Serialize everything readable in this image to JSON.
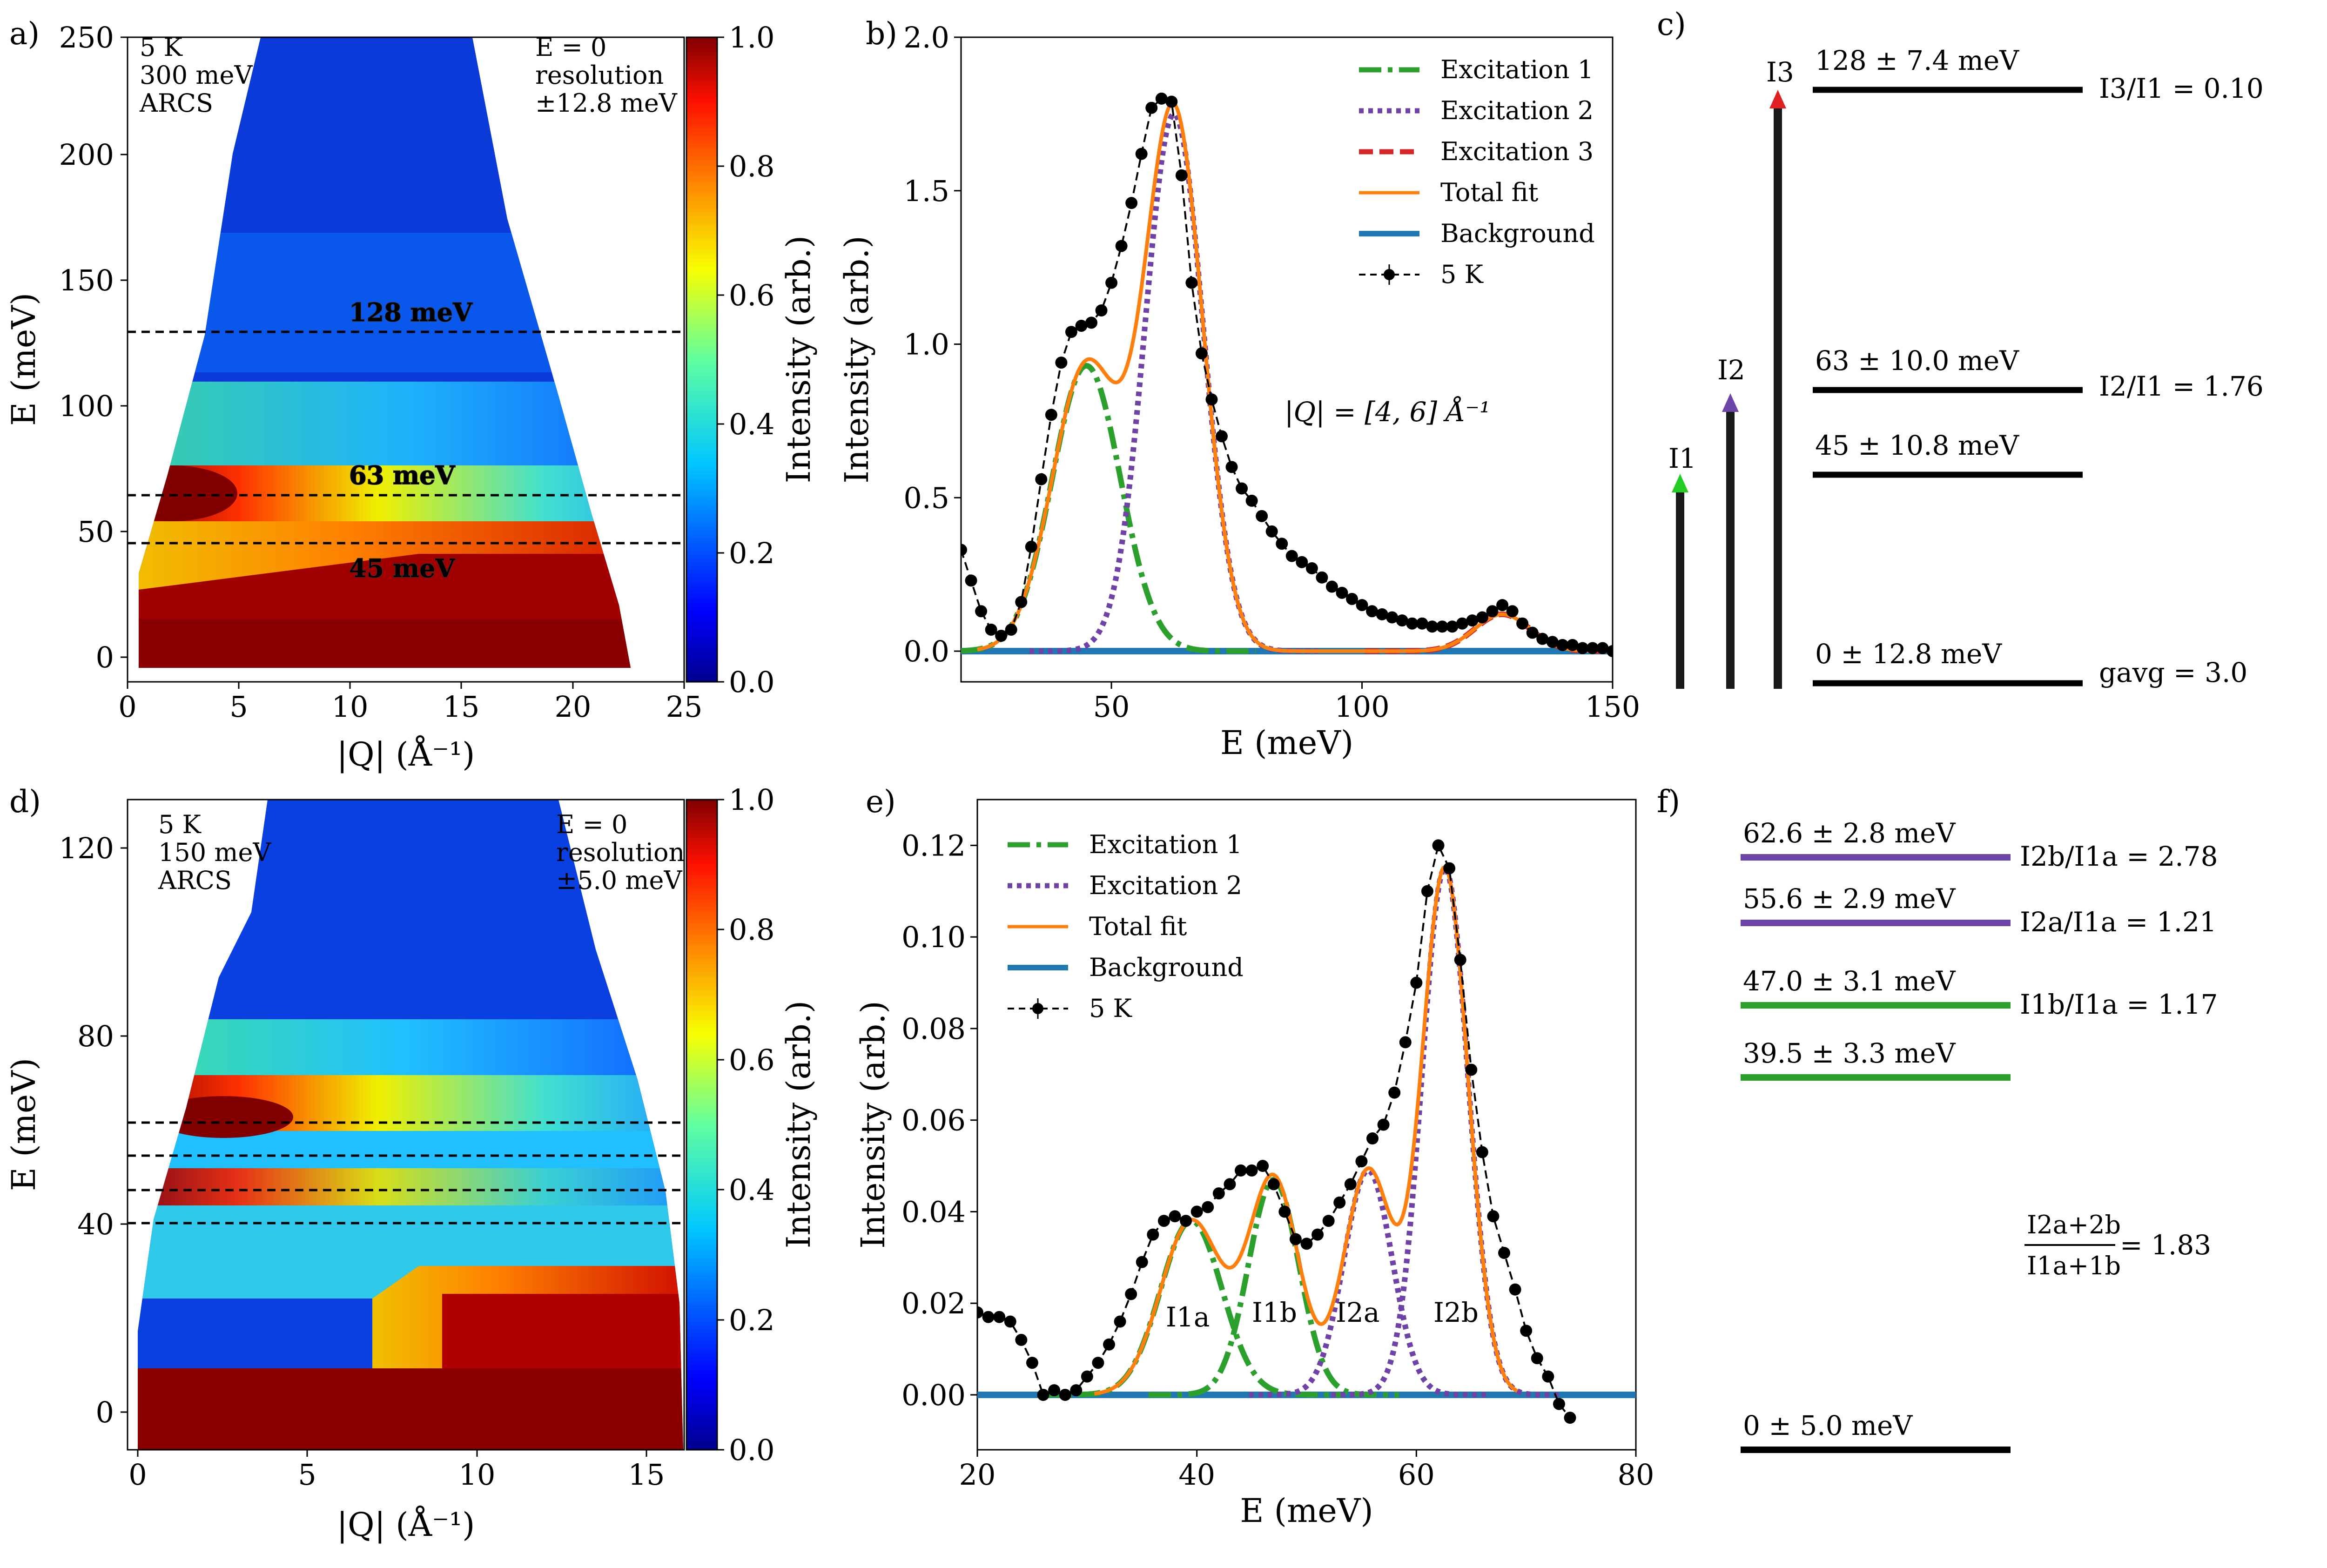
{
  "panels": {
    "a": {
      "letter": "a)",
      "info_left": [
        "5 K",
        "300 meV",
        "ARCS"
      ],
      "info_right": [
        "E = 0",
        "resolution",
        "±12.8 meV"
      ],
      "lines": [
        {
          "label": "128 meV",
          "value": 128
        },
        {
          "label": "63 meV",
          "value": 63
        },
        {
          "label": "45 meV",
          "value": 45
        }
      ],
      "xlabel": "|Q| (Å⁻¹)",
      "ylabel": "E (meV)",
      "cbar_label": "Intensity (arb.)",
      "cbar_ticks": [
        "0.0",
        "0.2",
        "0.4",
        "0.6",
        "0.8",
        "1.0"
      ],
      "xticks": [
        "0",
        "5",
        "10",
        "15",
        "20",
        "25"
      ],
      "yticks": [
        "0",
        "50",
        "100",
        "150",
        "200",
        "250"
      ]
    },
    "d": {
      "letter": "d)",
      "info_left": [
        "5 K",
        "150 meV",
        "ARCS"
      ],
      "info_right": [
        "E = 0",
        "resolution",
        "±5.0 meV"
      ],
      "lines": [
        62.6,
        55.6,
        47.0,
        39.5
      ],
      "xlabel": "|Q| (Å⁻¹)",
      "ylabel": "E (meV)",
      "cbar_label": "Intensity (arb.)",
      "cbar_ticks": [
        "0.0",
        "0.2",
        "0.4",
        "0.6",
        "0.8",
        "1.0"
      ],
      "xticks": [
        "0",
        "5",
        "10",
        "15"
      ],
      "yticks": [
        "0",
        "40",
        "80",
        "120"
      ]
    },
    "b": {
      "letter": "b)",
      "annotation": "|Q| = [4, 6] Å⁻¹"
    },
    "e": {
      "letter": "e)",
      "peak_labels": [
        "I1a",
        "I1b",
        "I2a",
        "I2b"
      ]
    },
    "c": {
      "letter": "c)",
      "levels": [
        "128 ± 7.4 meV",
        "63 ± 10.0 meV",
        "45 ± 10.8 meV",
        "0 ± 12.8 meV"
      ],
      "ratios": [
        "I3/I1 = 0.10",
        "I2/I1 = 1.76",
        "gavg = 3.0"
      ],
      "arrow_labels": [
        "I1",
        "I2",
        "I3"
      ]
    },
    "f": {
      "letter": "f)",
      "levels": [
        "62.6 ± 2.8 meV",
        "55.6 ± 2.9 meV",
        "47.0 ± 3.1 meV",
        "39.5 ± 3.3 meV",
        "0 ± 5.0 meV"
      ],
      "ratios": [
        "I2b/I1a = 2.78",
        "I2a/I1a = 1.21",
        "I1b/I1a = 1.17"
      ],
      "fraction": {
        "num": "I2a+2b",
        "den": "I1a+1b",
        "value": "= 1.83"
      }
    }
  },
  "colors": {
    "exc1": "#2ca02c",
    "exc2": "#6f42a8",
    "exc3": "#d62728",
    "total": "#ff7f0e",
    "background": "#1f77b4",
    "data": "#000000",
    "green_arrow": "#22cc22",
    "purple_arrow": "#6b46a8",
    "red_arrow": "#e02020"
  },
  "chart_data": [
    {
      "id": "b",
      "type": "line",
      "xlabel": "E (meV)",
      "ylabel": "Intensity (arb.)",
      "xlim": [
        20,
        150
      ],
      "ylim": [
        -0.1,
        2.0
      ],
      "xticks": [
        50,
        100,
        150
      ],
      "yticks": [
        0.0,
        0.5,
        1.0,
        1.5,
        2.0
      ],
      "legend": [
        "Excitation 1",
        "Excitation 2",
        "Excitation 3",
        "Total fit",
        "Background",
        "5 K"
      ],
      "series": [
        {
          "name": "Excitation 1",
          "style": "dashdot",
          "peak": {
            "center": 45,
            "amplitude": 0.93,
            "sigma": 6.8
          }
        },
        {
          "name": "Excitation 2",
          "style": "dotted",
          "peak": {
            "center": 62.5,
            "amplitude": 1.75,
            "sigma": 5.8
          }
        },
        {
          "name": "Excitation 3",
          "style": "dashed",
          "peak": {
            "center": 128,
            "amplitude": 0.12,
            "sigma": 5.5
          }
        },
        {
          "name": "Total fit",
          "style": "solid"
        },
        {
          "name": "Background",
          "style": "solid",
          "value": 0.0
        },
        {
          "name": "5 K",
          "x": [
            20,
            22,
            24,
            26,
            28,
            30,
            32,
            34,
            36,
            38,
            40,
            42,
            44,
            46,
            48,
            50,
            52,
            54,
            56,
            58,
            60,
            62,
            64,
            66,
            68,
            70,
            72,
            74,
            76,
            78,
            80,
            82,
            84,
            86,
            88,
            90,
            92,
            94,
            96,
            98,
            100,
            102,
            104,
            106,
            108,
            110,
            112,
            114,
            116,
            118,
            120,
            122,
            124,
            126,
            128,
            130,
            132,
            134,
            136,
            138,
            140,
            142,
            144,
            146,
            148,
            150
          ],
          "y": [
            0.33,
            0.23,
            0.13,
            0.07,
            0.05,
            0.07,
            0.16,
            0.34,
            0.56,
            0.77,
            0.94,
            1.04,
            1.06,
            1.07,
            1.11,
            1.2,
            1.32,
            1.46,
            1.62,
            1.77,
            1.8,
            1.79,
            1.55,
            1.2,
            0.97,
            0.82,
            0.7,
            0.6,
            0.53,
            0.49,
            0.44,
            0.39,
            0.35,
            0.31,
            0.29,
            0.27,
            0.24,
            0.21,
            0.19,
            0.17,
            0.15,
            0.13,
            0.12,
            0.11,
            0.1,
            0.09,
            0.09,
            0.08,
            0.08,
            0.08,
            0.09,
            0.1,
            0.11,
            0.13,
            0.15,
            0.13,
            0.09,
            0.06,
            0.04,
            0.03,
            0.02,
            0.02,
            0.01,
            0.01,
            0.01,
            0.0
          ]
        }
      ]
    },
    {
      "id": "e",
      "type": "line",
      "xlabel": "E (meV)",
      "ylabel": "Intensity (arb.)",
      "xlim": [
        20,
        80
      ],
      "ylim": [
        -0.012,
        0.13
      ],
      "xticks": [
        20,
        40,
        60,
        80
      ],
      "yticks": [
        0.0,
        0.02,
        0.04,
        0.06,
        0.08,
        0.1,
        0.12
      ],
      "legend": [
        "Excitation 1",
        "Excitation 2",
        "Total fit",
        "Background",
        "5 K"
      ],
      "series": [
        {
          "name": "Excitation 1",
          "style": "dashdot",
          "peaks": [
            {
              "center": 39.5,
              "amplitude": 0.038,
              "sigma": 2.8
            },
            {
              "center": 47.0,
              "amplitude": 0.047,
              "sigma": 2.3
            }
          ]
        },
        {
          "name": "Excitation 2",
          "style": "dotted",
          "peaks": [
            {
              "center": 55.6,
              "amplitude": 0.049,
              "sigma": 2.2
            },
            {
              "center": 62.6,
              "amplitude": 0.115,
              "sigma": 2.1
            }
          ]
        },
        {
          "name": "Total fit",
          "style": "solid"
        },
        {
          "name": "Background",
          "style": "solid",
          "value": 0.0
        },
        {
          "name": "5 K",
          "x": [
            20,
            21,
            22,
            23,
            24,
            25,
            26,
            27,
            28,
            29,
            30,
            31,
            32,
            33,
            34,
            35,
            36,
            37,
            38,
            39,
            40,
            41,
            42,
            43,
            44,
            45,
            46,
            47,
            48,
            49,
            50,
            51,
            52,
            53,
            54,
            55,
            56,
            57,
            58,
            59,
            60,
            61,
            62,
            63,
            64,
            65,
            66,
            67,
            68,
            69,
            70,
            71,
            72,
            73,
            74
          ],
          "y": [
            0.018,
            0.017,
            0.017,
            0.016,
            0.012,
            0.007,
            0.0,
            0.001,
            0.0,
            0.001,
            0.004,
            0.007,
            0.011,
            0.016,
            0.022,
            0.029,
            0.035,
            0.038,
            0.039,
            0.038,
            0.04,
            0.041,
            0.044,
            0.046,
            0.049,
            0.049,
            0.05,
            0.046,
            0.04,
            0.034,
            0.033,
            0.035,
            0.038,
            0.042,
            0.046,
            0.051,
            0.056,
            0.059,
            0.066,
            0.077,
            0.09,
            0.11,
            0.12,
            0.115,
            0.095,
            0.071,
            0.053,
            0.039,
            0.031,
            0.023,
            0.014,
            0.008,
            0.004,
            -0.002,
            -0.005
          ]
        }
      ]
    },
    {
      "id": "a",
      "type": "heatmap",
      "xlabel": "|Q| (Å⁻¹)",
      "ylabel": "E (meV)",
      "xlim": [
        0,
        25
      ],
      "ylim": [
        -10,
        250
      ],
      "colorbar": {
        "label": "Intensity (arb.)",
        "range": [
          0.0,
          1.0
        ]
      },
      "features_meV": [
        128,
        63,
        45
      ]
    },
    {
      "id": "d",
      "type": "heatmap",
      "xlabel": "|Q| (Å⁻¹)",
      "ylabel": "E (meV)",
      "xlim": [
        0,
        16
      ],
      "ylim": [
        -8,
        130
      ],
      "colorbar": {
        "label": "Intensity (arb.)",
        "range": [
          0.0,
          1.0
        ]
      },
      "features_meV": [
        62.6,
        55.6,
        47.0,
        39.5
      ]
    }
  ]
}
